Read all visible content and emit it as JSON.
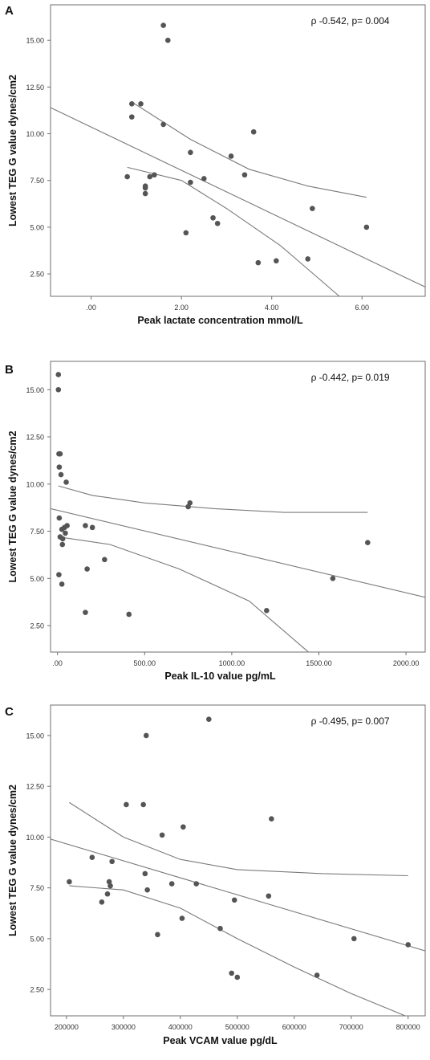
{
  "chart_data": [
    {
      "type": "scatter",
      "panel_label": "A",
      "annotation": "ρ -0.542, p= 0.004",
      "xlabel": "Peak lactate concentration mmol/L",
      "ylabel": "Lowest TEG G value dynes/cm2",
      "xlim": [
        -0.9,
        7.4
      ],
      "ylim": [
        1.3,
        16.9
      ],
      "x_ticks": [
        0,
        2,
        4,
        6
      ],
      "x_tick_labels": [
        ".00",
        "2.00",
        "4.00",
        "6.00"
      ],
      "y_ticks": [
        2.5,
        5,
        7.5,
        10,
        12.5,
        15
      ],
      "y_tick_labels": [
        "2.50",
        "5.00",
        "7.50",
        "10.00",
        "12.50",
        "15.00"
      ],
      "grid": false,
      "points": [
        {
          "x": 0.8,
          "y": 7.7
        },
        {
          "x": 0.9,
          "y": 11.6
        },
        {
          "x": 0.9,
          "y": 10.9
        },
        {
          "x": 1.1,
          "y": 11.6
        },
        {
          "x": 1.2,
          "y": 7.2
        },
        {
          "x": 1.2,
          "y": 7.1
        },
        {
          "x": 1.2,
          "y": 6.8
        },
        {
          "x": 1.3,
          "y": 7.7
        },
        {
          "x": 1.4,
          "y": 7.8
        },
        {
          "x": 1.6,
          "y": 15.8
        },
        {
          "x": 1.7,
          "y": 15.0
        },
        {
          "x": 1.6,
          "y": 10.5
        },
        {
          "x": 2.2,
          "y": 9.0
        },
        {
          "x": 2.2,
          "y": 7.4
        },
        {
          "x": 2.1,
          "y": 4.7
        },
        {
          "x": 2.5,
          "y": 7.6
        },
        {
          "x": 2.7,
          "y": 5.5
        },
        {
          "x": 2.8,
          "y": 5.2
        },
        {
          "x": 3.1,
          "y": 8.8
        },
        {
          "x": 3.4,
          "y": 7.8
        },
        {
          "x": 3.6,
          "y": 10.1
        },
        {
          "x": 3.7,
          "y": 3.1
        },
        {
          "x": 4.1,
          "y": 3.2
        },
        {
          "x": 4.8,
          "y": 3.3
        },
        {
          "x": 4.9,
          "y": 6.0
        },
        {
          "x": 6.1,
          "y": 5.0
        }
      ],
      "fit_line": [
        [
          -0.9,
          11.4
        ],
        [
          7.4,
          1.8
        ]
      ],
      "ci_upper": [
        [
          0.9,
          11.7
        ],
        [
          2.2,
          9.7
        ],
        [
          3.5,
          8.1
        ],
        [
          4.8,
          7.2
        ],
        [
          6.1,
          6.6
        ]
      ],
      "ci_lower": [
        [
          0.8,
          8.2
        ],
        [
          2.0,
          7.5
        ],
        [
          3.0,
          6.0
        ],
        [
          4.2,
          4.0
        ],
        [
          5.5,
          1.3
        ]
      ]
    },
    {
      "type": "scatter",
      "panel_label": "B",
      "annotation": "ρ -0.442, p= 0.019",
      "xlabel": "Peak IL-10 value pg/mL",
      "ylabel": "Lowest TEG G value dynes/cm2",
      "xlim": [
        -40,
        2110
      ],
      "ylim": [
        1.1,
        16.5
      ],
      "x_ticks": [
        0,
        500,
        1000,
        1500,
        2000
      ],
      "x_tick_labels": [
        ".00",
        "500.00",
        "1000.00",
        "1500.00",
        "2000.00"
      ],
      "y_ticks": [
        2.5,
        5,
        7.5,
        10,
        12.5,
        15
      ],
      "y_tick_labels": [
        "2.50",
        "5.00",
        "7.50",
        "10.00",
        "12.50",
        "15.00"
      ],
      "grid": false,
      "points": [
        {
          "x": 5,
          "y": 15.8
        },
        {
          "x": 5,
          "y": 15.0
        },
        {
          "x": 8,
          "y": 11.6
        },
        {
          "x": 15,
          "y": 11.6
        },
        {
          "x": 10,
          "y": 10.9
        },
        {
          "x": 20,
          "y": 10.5
        },
        {
          "x": 50,
          "y": 10.1
        },
        {
          "x": 10,
          "y": 8.2
        },
        {
          "x": 25,
          "y": 7.6
        },
        {
          "x": 40,
          "y": 7.7
        },
        {
          "x": 55,
          "y": 7.8
        },
        {
          "x": 45,
          "y": 7.4
        },
        {
          "x": 15,
          "y": 7.2
        },
        {
          "x": 30,
          "y": 7.1
        },
        {
          "x": 28,
          "y": 6.8
        },
        {
          "x": 8,
          "y": 5.2
        },
        {
          "x": 25,
          "y": 4.7
        },
        {
          "x": 160,
          "y": 7.8
        },
        {
          "x": 200,
          "y": 7.7
        },
        {
          "x": 170,
          "y": 5.5
        },
        {
          "x": 270,
          "y": 6.0
        },
        {
          "x": 160,
          "y": 3.2
        },
        {
          "x": 410,
          "y": 3.1
        },
        {
          "x": 750,
          "y": 8.8
        },
        {
          "x": 760,
          "y": 9.0
        },
        {
          "x": 1200,
          "y": 3.3
        },
        {
          "x": 1580,
          "y": 5.0
        },
        {
          "x": 1780,
          "y": 6.9
        }
      ],
      "fit_line": [
        [
          -40,
          8.7
        ],
        [
          2110,
          4.0
        ]
      ],
      "ci_upper": [
        [
          5,
          9.9
        ],
        [
          200,
          9.4
        ],
        [
          500,
          9.0
        ],
        [
          900,
          8.7
        ],
        [
          1300,
          8.5
        ],
        [
          1780,
          8.5
        ]
      ],
      "ci_lower": [
        [
          5,
          7.2
        ],
        [
          300,
          6.8
        ],
        [
          700,
          5.5
        ],
        [
          1100,
          3.8
        ],
        [
          1440,
          1.1
        ]
      ]
    },
    {
      "type": "scatter",
      "panel_label": "C",
      "annotation": "ρ -0.495, p= 0.007",
      "xlabel": "Peak VCAM value pg/dL",
      "ylabel": "Lowest TEG G value dynes/cm2",
      "xlim": [
        172000,
        830000
      ],
      "ylim": [
        1.2,
        16.5
      ],
      "x_ticks": [
        200000,
        300000,
        400000,
        500000,
        600000,
        700000,
        800000
      ],
      "x_tick_labels": [
        "200000",
        "300000",
        "400000",
        "500000",
        "600000",
        "700000",
        "800000"
      ],
      "y_ticks": [
        2.5,
        5,
        7.5,
        10,
        12.5,
        15
      ],
      "y_tick_labels": [
        "2.50",
        "5.00",
        "7.50",
        "10.00",
        "12.50",
        "15.00"
      ],
      "grid": false,
      "points": [
        {
          "x": 205000,
          "y": 7.8
        },
        {
          "x": 245000,
          "y": 9.0
        },
        {
          "x": 262000,
          "y": 6.8
        },
        {
          "x": 272000,
          "y": 7.2
        },
        {
          "x": 275000,
          "y": 7.8
        },
        {
          "x": 277000,
          "y": 7.6
        },
        {
          "x": 280000,
          "y": 8.8
        },
        {
          "x": 305000,
          "y": 11.6
        },
        {
          "x": 335000,
          "y": 11.6
        },
        {
          "x": 338000,
          "y": 8.2
        },
        {
          "x": 340000,
          "y": 15.0
        },
        {
          "x": 342000,
          "y": 7.4
        },
        {
          "x": 360000,
          "y": 5.2
        },
        {
          "x": 368000,
          "y": 10.1
        },
        {
          "x": 385000,
          "y": 7.7
        },
        {
          "x": 403000,
          "y": 6.0
        },
        {
          "x": 405000,
          "y": 10.5
        },
        {
          "x": 428000,
          "y": 7.7
        },
        {
          "x": 450000,
          "y": 15.8
        },
        {
          "x": 470000,
          "y": 5.5
        },
        {
          "x": 490000,
          "y": 3.3
        },
        {
          "x": 495000,
          "y": 6.9
        },
        {
          "x": 500000,
          "y": 3.1
        },
        {
          "x": 555000,
          "y": 7.1
        },
        {
          "x": 560000,
          "y": 10.9
        },
        {
          "x": 640000,
          "y": 3.2
        },
        {
          "x": 705000,
          "y": 5.0
        },
        {
          "x": 800000,
          "y": 4.7
        }
      ],
      "fit_line": [
        [
          172000,
          9.9
        ],
        [
          830000,
          4.4
        ]
      ],
      "ci_upper": [
        [
          205000,
          11.7
        ],
        [
          300000,
          10.0
        ],
        [
          400000,
          8.9
        ],
        [
          500000,
          8.4
        ],
        [
          650000,
          8.2
        ],
        [
          800000,
          8.1
        ]
      ],
      "ci_lower": [
        [
          205000,
          7.6
        ],
        [
          300000,
          7.4
        ],
        [
          400000,
          6.5
        ],
        [
          500000,
          5.0
        ],
        [
          600000,
          3.6
        ],
        [
          700000,
          2.3
        ],
        [
          795000,
          1.2
        ]
      ]
    }
  ]
}
